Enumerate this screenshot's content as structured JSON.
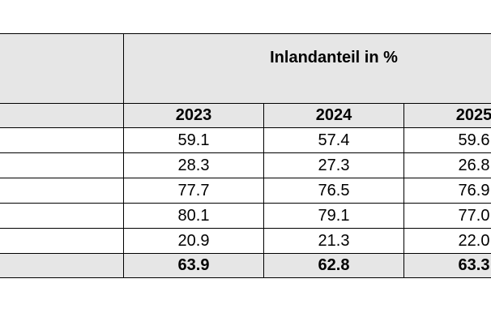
{
  "table": {
    "header": "Inlandanteil in %",
    "years": [
      "2023",
      "2024",
      "2025"
    ],
    "rows": [
      [
        "59.1",
        "57.4",
        "59.6"
      ],
      [
        "28.3",
        "27.3",
        "26.8"
      ],
      [
        "77.7",
        "76.5",
        "76.9"
      ],
      [
        "80.1",
        "79.1",
        "77.0"
      ],
      [
        "20.9",
        "21.3",
        "22.0"
      ]
    ],
    "total": [
      "63.9",
      "62.8",
      "63.3"
    ]
  }
}
